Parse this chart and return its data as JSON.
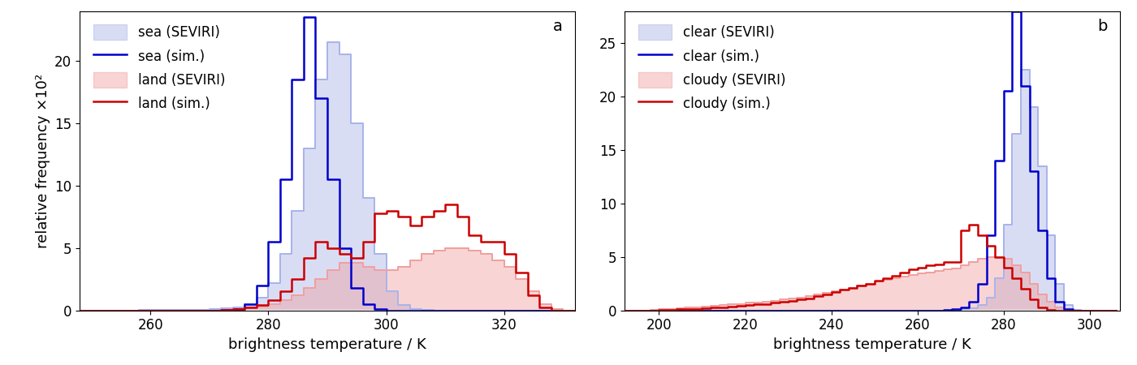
{
  "panel_a": {
    "label": "a",
    "xlim": [
      248,
      332
    ],
    "ylim": [
      0,
      24
    ],
    "yticks": [
      0,
      5,
      10,
      15,
      20
    ],
    "xticks": [
      260,
      280,
      300,
      320
    ],
    "sea_seviri": {
      "x": [
        248,
        250,
        252,
        254,
        256,
        258,
        260,
        262,
        264,
        266,
        268,
        270,
        272,
        274,
        276,
        278,
        280,
        282,
        284,
        286,
        288,
        290,
        292,
        294,
        296,
        298,
        300,
        302,
        304,
        306,
        308,
        310,
        312,
        314,
        316,
        318,
        320,
        322,
        324,
        326,
        328,
        330,
        332
      ],
      "y": [
        0.0,
        0.0,
        0.0,
        0.0,
        0.0,
        0.05,
        0.05,
        0.05,
        0.05,
        0.05,
        0.05,
        0.1,
        0.15,
        0.25,
        0.5,
        1.0,
        2.2,
        4.5,
        8.0,
        13.0,
        18.5,
        21.5,
        20.5,
        15.0,
        9.0,
        4.5,
        1.5,
        0.4,
        0.1,
        0.02,
        0.0,
        0.0,
        0.0,
        0.0,
        0.0,
        0.0,
        0.0,
        0.0,
        0.0,
        0.0,
        0.0,
        0.0,
        0.0
      ],
      "color": "#aab4e8",
      "label": "sea (SEVIRI)"
    },
    "sea_sim": {
      "x": [
        248,
        250,
        252,
        254,
        256,
        258,
        260,
        262,
        264,
        266,
        268,
        270,
        272,
        274,
        276,
        278,
        280,
        282,
        284,
        286,
        288,
        290,
        292,
        294,
        296,
        298,
        300,
        302,
        304,
        306,
        308,
        310,
        312,
        314,
        316,
        318,
        320,
        322,
        324,
        326,
        328,
        330,
        332
      ],
      "y": [
        0.0,
        0.0,
        0.0,
        0.0,
        0.0,
        0.0,
        0.0,
        0.0,
        0.0,
        0.0,
        0.0,
        0.0,
        0.05,
        0.1,
        0.5,
        2.0,
        5.5,
        10.5,
        18.5,
        23.5,
        17.0,
        10.5,
        5.0,
        1.8,
        0.5,
        0.1,
        0.0,
        0.0,
        0.0,
        0.0,
        0.0,
        0.0,
        0.0,
        0.0,
        0.0,
        0.0,
        0.0,
        0.0,
        0.0,
        0.0,
        0.0,
        0.0,
        0.0
      ],
      "color": "#0000cc",
      "label": "sea (sim.)"
    },
    "land_seviri": {
      "x": [
        248,
        250,
        252,
        254,
        256,
        258,
        260,
        262,
        264,
        266,
        268,
        270,
        272,
        274,
        276,
        278,
        280,
        282,
        284,
        286,
        288,
        290,
        292,
        294,
        296,
        298,
        300,
        302,
        304,
        306,
        308,
        310,
        312,
        314,
        316,
        318,
        320,
        322,
        324,
        326,
        328,
        330,
        332
      ],
      "y": [
        0.0,
        0.0,
        0.0,
        0.0,
        0.0,
        0.0,
        0.0,
        0.0,
        0.0,
        0.0,
        0.0,
        0.0,
        0.05,
        0.1,
        0.2,
        0.3,
        0.5,
        0.8,
        1.2,
        1.8,
        2.5,
        3.2,
        3.8,
        3.8,
        3.5,
        3.2,
        3.2,
        3.5,
        4.0,
        4.5,
        4.8,
        5.0,
        5.0,
        4.8,
        4.5,
        4.0,
        3.5,
        2.5,
        1.5,
        0.5,
        0.1,
        0.0,
        0.0
      ],
      "color": "#f0a0a0",
      "label": "land (SEVIRI)"
    },
    "land_sim": {
      "x": [
        248,
        250,
        252,
        254,
        256,
        258,
        260,
        262,
        264,
        266,
        268,
        270,
        272,
        274,
        276,
        278,
        280,
        282,
        284,
        286,
        288,
        290,
        292,
        294,
        296,
        298,
        300,
        302,
        304,
        306,
        308,
        310,
        312,
        314,
        316,
        318,
        320,
        322,
        324,
        326,
        328,
        330,
        332
      ],
      "y": [
        0.0,
        0.0,
        0.0,
        0.0,
        0.0,
        0.0,
        0.0,
        0.0,
        0.0,
        0.0,
        0.0,
        0.0,
        0.05,
        0.1,
        0.2,
        0.4,
        0.8,
        1.5,
        2.5,
        4.2,
        5.5,
        5.0,
        4.5,
        4.2,
        5.5,
        7.8,
        8.0,
        7.5,
        6.8,
        7.5,
        8.0,
        8.5,
        7.5,
        6.0,
        5.5,
        5.5,
        4.5,
        3.0,
        1.2,
        0.2,
        0.0,
        0.0,
        0.0
      ],
      "color": "#cc0000",
      "label": "land (sim.)"
    },
    "ylabel": "relative frequency ×10²",
    "xlabel": "brightness temperature / K"
  },
  "panel_b": {
    "label": "b",
    "xlim": [
      192,
      307
    ],
    "ylim": [
      0,
      28
    ],
    "yticks": [
      0,
      5,
      10,
      15,
      20,
      25
    ],
    "xticks": [
      200,
      220,
      240,
      260,
      280,
      300
    ],
    "clear_seviri": {
      "x": [
        192,
        194,
        196,
        198,
        200,
        202,
        204,
        206,
        208,
        210,
        212,
        214,
        216,
        218,
        220,
        222,
        224,
        226,
        228,
        230,
        232,
        234,
        236,
        238,
        240,
        242,
        244,
        246,
        248,
        250,
        252,
        254,
        256,
        258,
        260,
        262,
        264,
        266,
        268,
        270,
        272,
        274,
        276,
        278,
        280,
        282,
        284,
        286,
        288,
        290,
        292,
        294,
        296,
        298,
        300,
        302,
        304,
        306
      ],
      "y": [
        0.0,
        0.0,
        0.0,
        0.0,
        0.0,
        0.0,
        0.0,
        0.0,
        0.0,
        0.0,
        0.0,
        0.0,
        0.0,
        0.0,
        0.0,
        0.0,
        0.0,
        0.0,
        0.0,
        0.0,
        0.0,
        0.0,
        0.0,
        0.0,
        0.0,
        0.0,
        0.0,
        0.0,
        0.0,
        0.0,
        0.0,
        0.0,
        0.0,
        0.0,
        0.0,
        0.0,
        0.0,
        0.0,
        0.05,
        0.1,
        0.2,
        0.5,
        1.2,
        3.0,
        8.0,
        16.5,
        22.5,
        19.0,
        13.5,
        7.0,
        2.5,
        0.5,
        0.05,
        0.0,
        0.0,
        0.0,
        0.0,
        0.0
      ],
      "color": "#aab4e8",
      "label": "clear (SEVIRI)"
    },
    "clear_sim": {
      "x": [
        192,
        194,
        196,
        198,
        200,
        202,
        204,
        206,
        208,
        210,
        212,
        214,
        216,
        218,
        220,
        222,
        224,
        226,
        228,
        230,
        232,
        234,
        236,
        238,
        240,
        242,
        244,
        246,
        248,
        250,
        252,
        254,
        256,
        258,
        260,
        262,
        264,
        266,
        268,
        270,
        272,
        274,
        276,
        278,
        280,
        282,
        284,
        286,
        288,
        290,
        292,
        294,
        296,
        298,
        300,
        302,
        304,
        306
      ],
      "y": [
        0.0,
        0.0,
        0.0,
        0.0,
        0.0,
        0.0,
        0.0,
        0.0,
        0.0,
        0.0,
        0.0,
        0.0,
        0.0,
        0.0,
        0.0,
        0.0,
        0.0,
        0.0,
        0.0,
        0.0,
        0.0,
        0.0,
        0.0,
        0.0,
        0.0,
        0.0,
        0.0,
        0.0,
        0.0,
        0.0,
        0.0,
        0.0,
        0.0,
        0.0,
        0.0,
        0.0,
        0.0,
        0.05,
        0.1,
        0.3,
        0.8,
        2.5,
        7.0,
        14.0,
        20.5,
        28.0,
        21.0,
        13.0,
        7.5,
        3.0,
        0.8,
        0.1,
        0.0,
        0.0,
        0.0,
        0.0,
        0.0,
        0.0
      ],
      "color": "#0000cc",
      "label": "clear (sim.)"
    },
    "cloudy_seviri": {
      "x": [
        192,
        194,
        196,
        198,
        200,
        202,
        204,
        206,
        208,
        210,
        212,
        214,
        216,
        218,
        220,
        222,
        224,
        226,
        228,
        230,
        232,
        234,
        236,
        238,
        240,
        242,
        244,
        246,
        248,
        250,
        252,
        254,
        256,
        258,
        260,
        262,
        264,
        266,
        268,
        270,
        272,
        274,
        276,
        278,
        280,
        282,
        284,
        286,
        288,
        290,
        292,
        294,
        296,
        298,
        300,
        302,
        304,
        306
      ],
      "y": [
        0.0,
        0.0,
        0.0,
        0.05,
        0.1,
        0.15,
        0.2,
        0.25,
        0.3,
        0.35,
        0.4,
        0.5,
        0.55,
        0.6,
        0.7,
        0.75,
        0.8,
        0.9,
        1.0,
        1.1,
        1.2,
        1.35,
        1.5,
        1.65,
        1.8,
        1.95,
        2.1,
        2.3,
        2.5,
        2.7,
        2.85,
        3.0,
        3.15,
        3.3,
        3.45,
        3.55,
        3.7,
        3.8,
        3.9,
        4.2,
        4.5,
        4.8,
        5.0,
        5.0,
        4.8,
        4.2,
        3.5,
        2.5,
        1.5,
        0.8,
        0.3,
        0.05,
        0.0,
        0.0,
        0.0,
        0.0,
        0.0,
        0.0
      ],
      "color": "#f0a0a0",
      "label": "cloudy (SEVIRI)"
    },
    "cloudy_sim": {
      "x": [
        192,
        194,
        196,
        198,
        200,
        202,
        204,
        206,
        208,
        210,
        212,
        214,
        216,
        218,
        220,
        222,
        224,
        226,
        228,
        230,
        232,
        234,
        236,
        238,
        240,
        242,
        244,
        246,
        248,
        250,
        252,
        254,
        256,
        258,
        260,
        262,
        264,
        266,
        268,
        270,
        272,
        274,
        276,
        278,
        280,
        282,
        284,
        286,
        288,
        290,
        292,
        294,
        296,
        298,
        300,
        302,
        304,
        306
      ],
      "y": [
        0.0,
        0.0,
        0.0,
        0.0,
        0.05,
        0.05,
        0.1,
        0.1,
        0.15,
        0.2,
        0.25,
        0.3,
        0.35,
        0.4,
        0.5,
        0.55,
        0.6,
        0.7,
        0.8,
        0.9,
        1.0,
        1.1,
        1.3,
        1.5,
        1.7,
        1.9,
        2.1,
        2.3,
        2.5,
        2.8,
        3.0,
        3.2,
        3.5,
        3.8,
        4.0,
        4.2,
        4.3,
        4.5,
        4.5,
        7.5,
        8.0,
        7.0,
        6.0,
        5.0,
        4.0,
        3.0,
        2.0,
        1.0,
        0.3,
        0.05,
        0.0,
        0.0,
        0.0,
        0.0,
        0.0,
        0.0,
        0.0,
        0.0
      ],
      "color": "#cc0000",
      "label": "cloudy (sim.)"
    },
    "ylabel": "",
    "xlabel": "brightness temperature / K"
  },
  "figwidth": 14.0,
  "figheight": 4.5,
  "label_fontsize": 13,
  "tick_fontsize": 12,
  "legend_fontsize": 12,
  "line_width": 1.8,
  "fill_alpha": 0.45,
  "panel_label_fontsize": 14
}
